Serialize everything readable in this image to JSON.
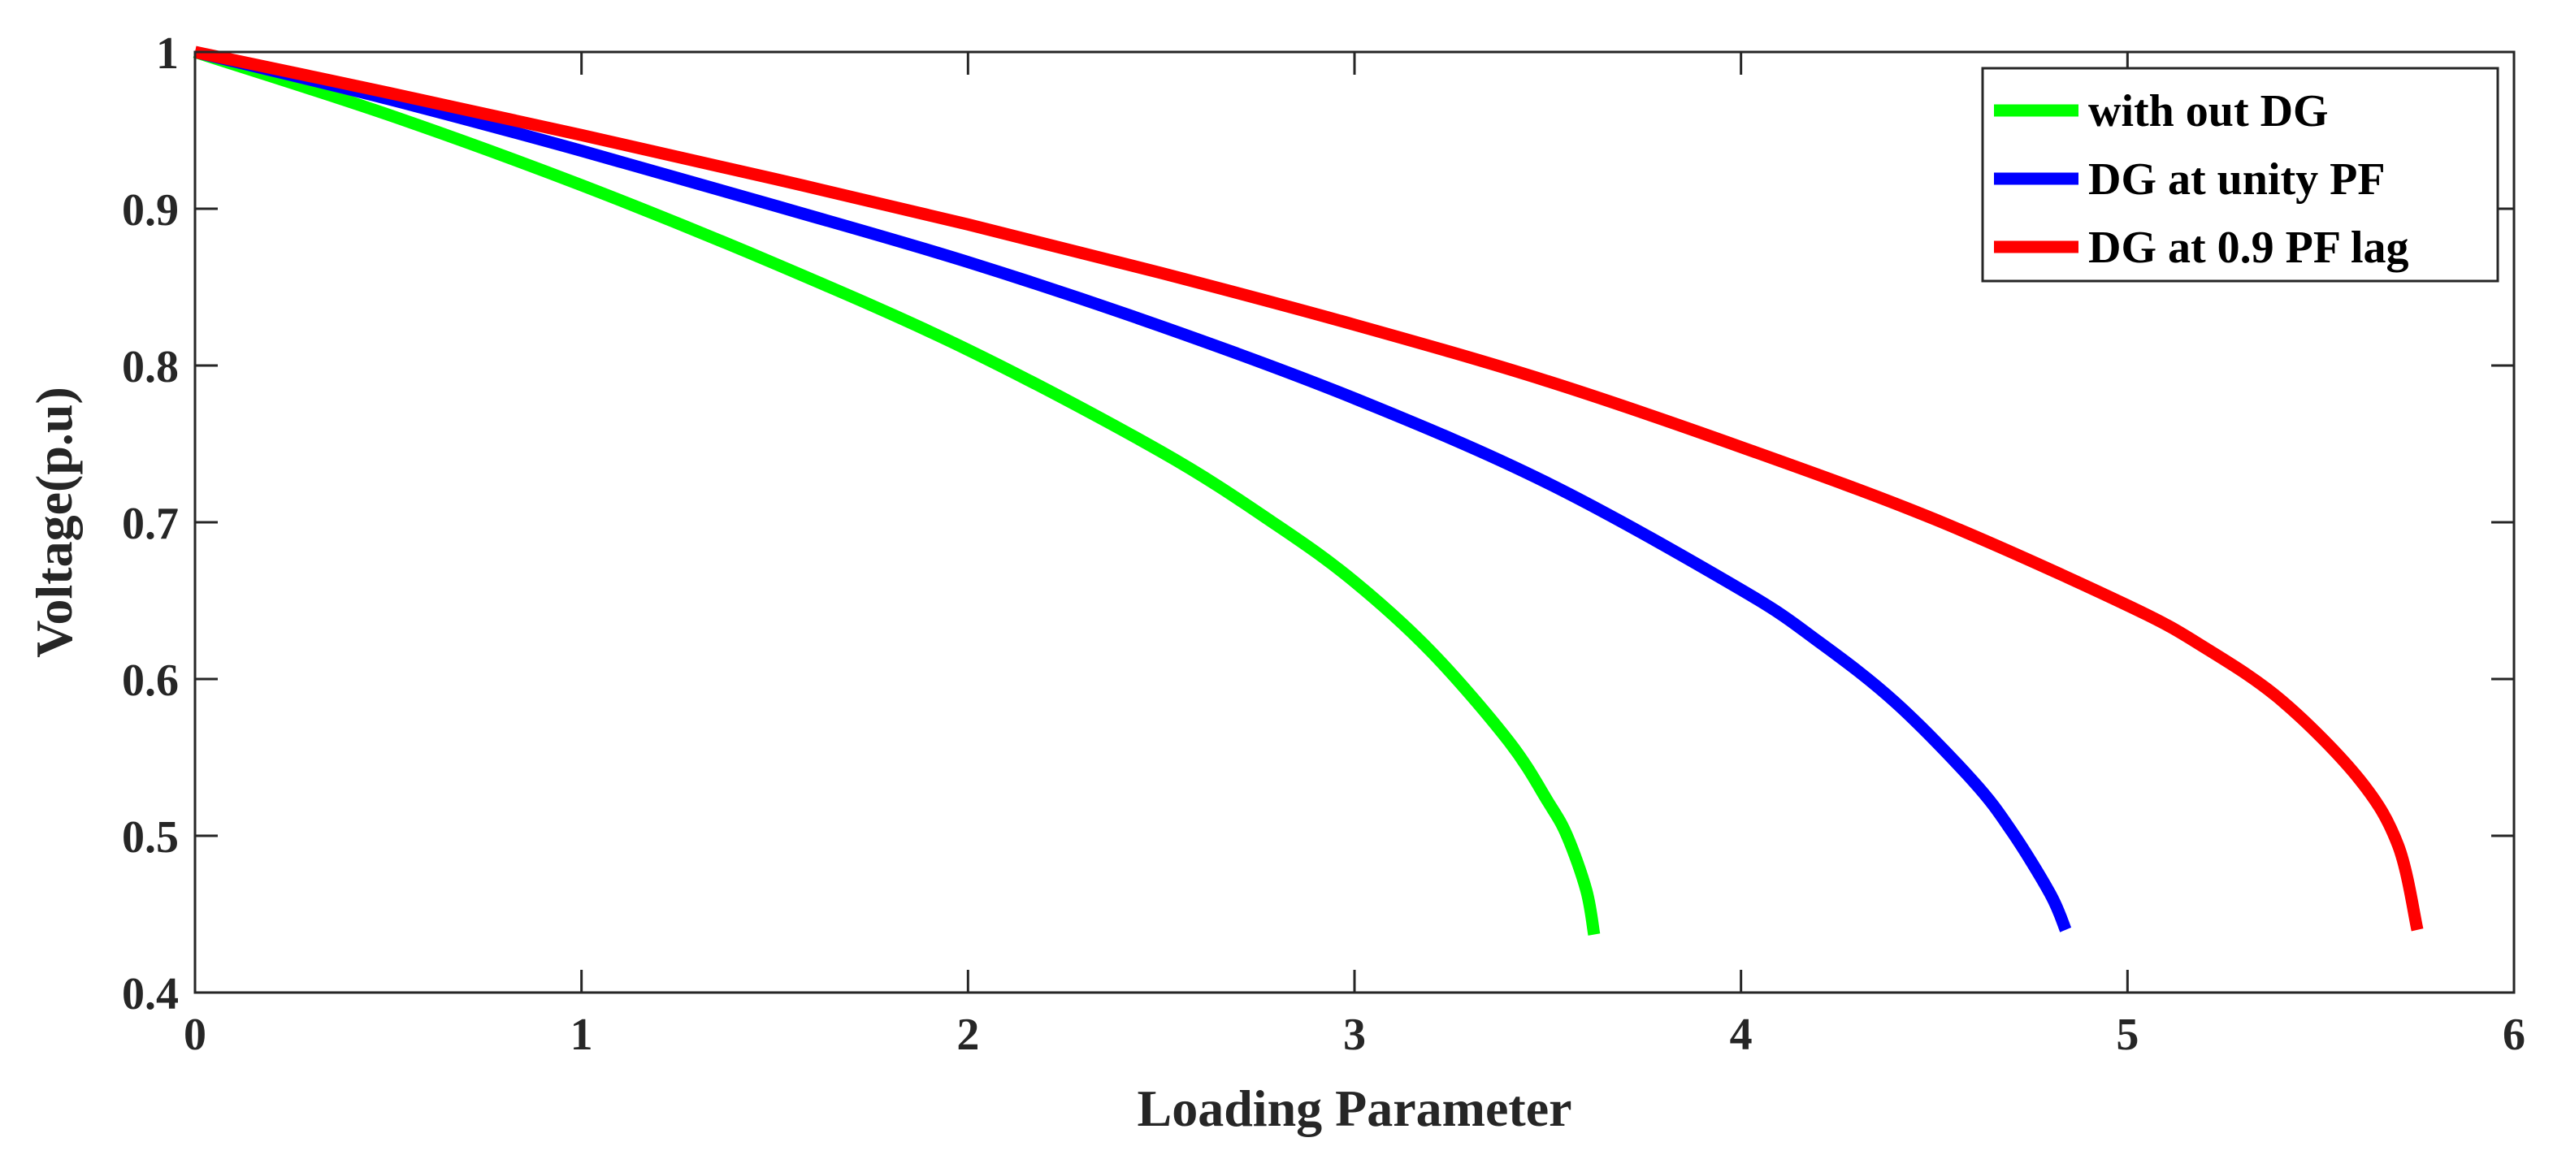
{
  "chart_data": {
    "type": "line",
    "title": "",
    "xlabel": "Loading Parameter",
    "ylabel": "Voltage(p.u)",
    "xlim": [
      0,
      6
    ],
    "ylim": [
      0.4,
      1.0
    ],
    "x_ticks": [
      0,
      1,
      2,
      3,
      4,
      5,
      6
    ],
    "x_tick_labels": [
      "0",
      "1",
      "2",
      "3",
      "4",
      "5",
      "6"
    ],
    "y_ticks": [
      0.4,
      0.5,
      0.6,
      0.7,
      0.8,
      0.9,
      1.0
    ],
    "y_tick_labels": [
      "0.4",
      "0.5",
      "0.6",
      "0.7",
      "0.8",
      "0.9",
      "1"
    ],
    "grid": false,
    "legend_position": "top-right",
    "series": [
      {
        "name": "with out DG",
        "color": "#00ff00",
        "x": [
          0,
          0.5,
          1.0,
          1.5,
          2.0,
          2.5,
          2.8,
          3.0,
          3.2,
          3.4,
          3.5,
          3.55,
          3.6,
          3.62
        ],
        "y": [
          1.0,
          0.96,
          0.915,
          0.865,
          0.81,
          0.745,
          0.698,
          0.662,
          0.617,
          0.56,
          0.522,
          0.5,
          0.465,
          0.437
        ]
      },
      {
        "name": "DG at unity PF",
        "color": "#0000ff",
        "x": [
          0,
          0.5,
          1.0,
          1.5,
          2.0,
          2.5,
          3.0,
          3.5,
          4.0,
          4.2,
          4.4,
          4.6,
          4.7,
          4.8,
          4.84
        ],
        "y": [
          1.0,
          0.97,
          0.937,
          0.902,
          0.866,
          0.825,
          0.779,
          0.725,
          0.657,
          0.624,
          0.585,
          0.535,
          0.503,
          0.463,
          0.44
        ]
      },
      {
        "name": "DG at 0.9 PF lag",
        "color": "#ff0000",
        "x": [
          0,
          0.5,
          1.0,
          1.5,
          2.0,
          2.5,
          3.0,
          3.5,
          4.0,
          4.5,
          5.0,
          5.2,
          5.4,
          5.6,
          5.7,
          5.75
        ],
        "y": [
          1.0,
          0.974,
          0.947,
          0.919,
          0.89,
          0.859,
          0.826,
          0.79,
          0.748,
          0.702,
          0.647,
          0.62,
          0.586,
          0.536,
          0.494,
          0.44
        ]
      }
    ]
  }
}
